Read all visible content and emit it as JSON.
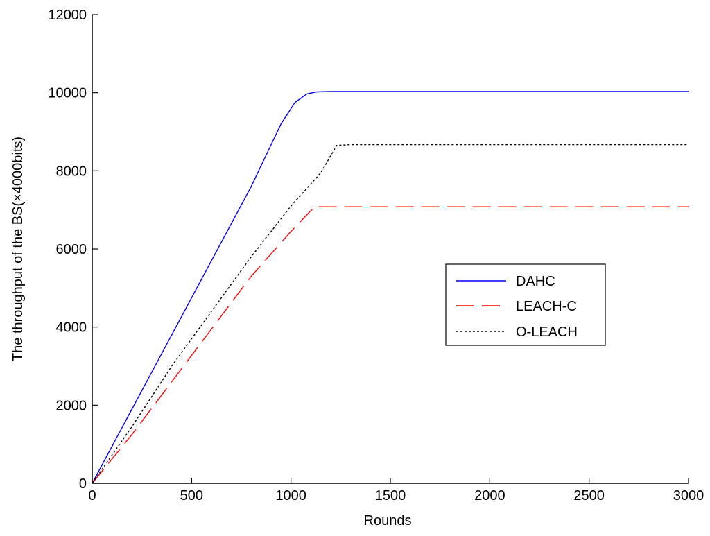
{
  "chart_data": {
    "type": "line",
    "xlabel": "Rounds",
    "ylabel": "The throughput of the BS(×4000bits)",
    "xlim": [
      0,
      3000
    ],
    "ylim": [
      0,
      12000
    ],
    "xticks": [
      0,
      500,
      1000,
      1500,
      2000,
      2500,
      3000
    ],
    "yticks": [
      0,
      2000,
      4000,
      6000,
      8000,
      10000,
      12000
    ],
    "grid": false,
    "legend_position": "center-right",
    "series": [
      {
        "name": "DAHC",
        "color": "#0000ff",
        "style": "solid",
        "x": [
          0,
          200,
          400,
          600,
          800,
          950,
          1020,
          1080,
          1130,
          1200,
          1500,
          2000,
          2500,
          3000
        ],
        "y": [
          0,
          1900,
          3800,
          5700,
          7600,
          9200,
          9750,
          9970,
          10020,
          10030,
          10030,
          10030,
          10030,
          10030
        ]
      },
      {
        "name": "LEACH-C",
        "color": "#ff0000",
        "style": "dashed",
        "x": [
          0,
          200,
          400,
          600,
          800,
          1000,
          1100,
          1120,
          1500,
          2000,
          2500,
          3000
        ],
        "y": [
          0,
          1250,
          2600,
          3950,
          5300,
          6450,
          6980,
          7080,
          7080,
          7080,
          7080,
          7080
        ]
      },
      {
        "name": "O-LEACH",
        "color": "#000000",
        "style": "dotted",
        "x": [
          0,
          200,
          400,
          600,
          800,
          1000,
          1150,
          1230,
          1300,
          1500,
          2000,
          2500,
          3000
        ],
        "y": [
          0,
          1450,
          3000,
          4400,
          5800,
          7100,
          7950,
          8650,
          8670,
          8670,
          8670,
          8670,
          8670
        ]
      }
    ]
  }
}
